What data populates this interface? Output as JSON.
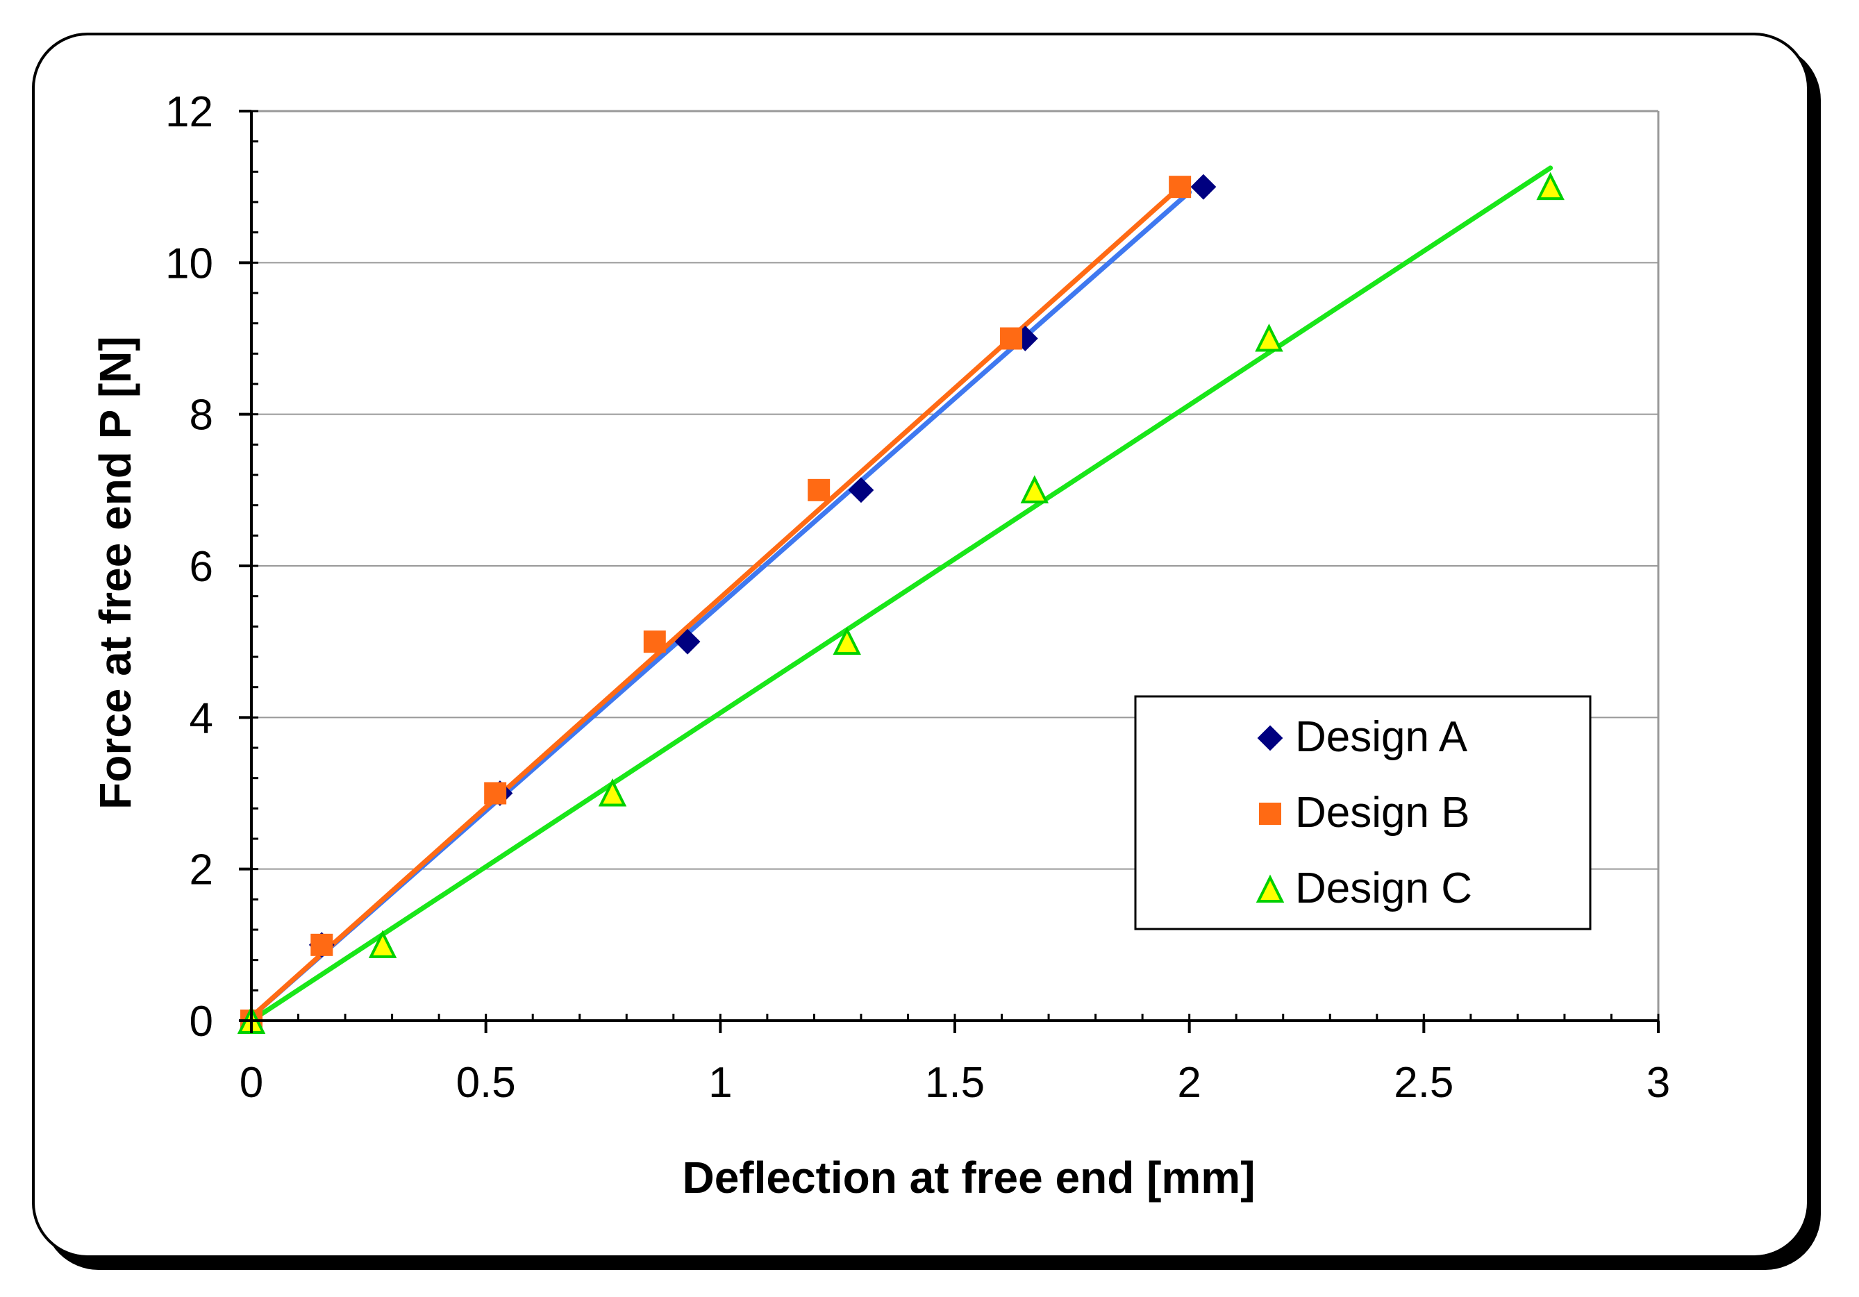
{
  "chart_data": {
    "type": "scatter",
    "title": "",
    "xlabel": "Deflection at free end [mm]",
    "ylabel": "Force at free end P [N]",
    "xlim": [
      0,
      3
    ],
    "ylim": [
      0,
      12
    ],
    "xticks": [
      0,
      0.5,
      1,
      1.5,
      2,
      2.5,
      3
    ],
    "xtick_labels": [
      "0",
      "0.5",
      "1",
      "1.5",
      "2",
      "2.5",
      "3"
    ],
    "yticks": [
      0,
      2,
      4,
      6,
      8,
      10,
      12
    ],
    "ytick_labels": [
      "0",
      "2",
      "4",
      "6",
      "8",
      "10",
      "12"
    ],
    "x_minor_step": 0.1,
    "y_minor_step": 0.4,
    "grid": "horizontal major",
    "legend_position": "lower-right",
    "series": [
      {
        "name": "Design A",
        "marker": "diamond",
        "marker_color": "#000080",
        "marker_edge": "#000080",
        "x": [
          0,
          0.15,
          0.53,
          0.93,
          1.3,
          1.65,
          2.03
        ],
        "y": [
          0,
          1,
          3,
          5,
          7,
          9,
          11
        ],
        "trendline": {
          "color": "#3F78F0",
          "from": [
            0,
            0.05
          ],
          "to": [
            2.0,
            10.93
          ]
        }
      },
      {
        "name": "Design B",
        "marker": "square",
        "marker_color": "#FF6A14",
        "marker_edge": "#FF6A14",
        "x": [
          0,
          0.15,
          0.52,
          0.86,
          1.21,
          1.62,
          1.98
        ],
        "y": [
          0,
          1,
          3,
          5,
          7,
          9,
          11
        ],
        "trendline": {
          "color": "#FF6A14",
          "from": [
            0,
            0.05
          ],
          "to": [
            1.98,
            11.0
          ]
        }
      },
      {
        "name": "Design C",
        "marker": "triangle",
        "marker_color": "#FFFF00",
        "marker_edge": "#00D000",
        "x": [
          0,
          0.28,
          0.77,
          1.27,
          1.67,
          2.17,
          2.77
        ],
        "y": [
          0,
          1,
          3,
          5,
          7,
          9,
          11
        ],
        "trendline": {
          "color": "#19E619",
          "from": [
            0,
            0
          ],
          "to": [
            2.77,
            11.25
          ]
        }
      }
    ]
  },
  "colors": {
    "background": "#ffffff",
    "frame_border": "#000000",
    "frame_shadow": "#000000",
    "plot_border": "#999999",
    "gridline": "#999999",
    "axis": "#000000"
  }
}
